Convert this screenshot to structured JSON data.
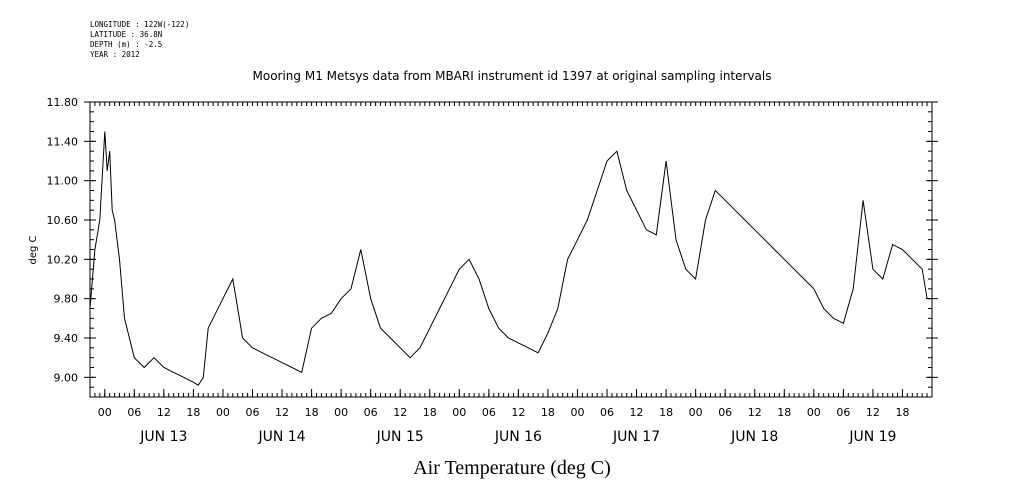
{
  "meta": {
    "longitude": "LONGITUDE : 122W(-122)",
    "latitude": "LATITUDE : 36.8N",
    "depth": "DEPTH (m) : -2.5",
    "year": "YEAR : 2012"
  },
  "chart_data": {
    "type": "line",
    "title": "Mooring M1 Metsys data from MBARI instrument id 1397 at original sampling intervals",
    "xlabel": "Air Temperature (deg C)",
    "ylabel": "deg C",
    "ylim": [
      8.8,
      11.8
    ],
    "yticks": [
      "9.00",
      "9.40",
      "9.80",
      "10.20",
      "10.60",
      "11.00",
      "11.40",
      "11.80"
    ],
    "x_start_hours_before_jun13_00": 3,
    "x_hour_tick_labels": [
      "00",
      "06",
      "12",
      "18",
      "00",
      "06",
      "12",
      "18",
      "00",
      "06",
      "12",
      "18",
      "00",
      "06",
      "12",
      "18",
      "00",
      "06",
      "12",
      "18",
      "00",
      "06",
      "12",
      "18",
      "00",
      "06",
      "12",
      "18"
    ],
    "day_labels": [
      "JUN 13",
      "JUN 14",
      "JUN 15",
      "JUN 16",
      "JUN 17",
      "JUN 18",
      "JUN 19"
    ],
    "series": [
      {
        "x_units": "hours since JUN 13 00:00",
        "x": [
          -3,
          -2,
          -1,
          0,
          0.5,
          1,
          1.5,
          2,
          3,
          4,
          5,
          6,
          8,
          10,
          12,
          14,
          16,
          18,
          19,
          20,
          21,
          22,
          24,
          26,
          28,
          30,
          32,
          34,
          36,
          38,
          40,
          42,
          44,
          46,
          48,
          50,
          52,
          54,
          56,
          58,
          60,
          62,
          64,
          66,
          68,
          70,
          72,
          74,
          76,
          78,
          80,
          82,
          84,
          86,
          88,
          90,
          92,
          94,
          96,
          98,
          100,
          102,
          104,
          106,
          108,
          110,
          112,
          114,
          116,
          118,
          120,
          122,
          124,
          126,
          128,
          130,
          132,
          134,
          136,
          138,
          140,
          142,
          144,
          146,
          148,
          150,
          152,
          154,
          156,
          158,
          160,
          162,
          164,
          166,
          167
        ],
        "values": [
          9.7,
          10.3,
          10.6,
          11.5,
          11.1,
          11.3,
          10.7,
          10.6,
          10.2,
          9.6,
          9.4,
          9.2,
          9.1,
          9.2,
          9.1,
          9.05,
          9.0,
          8.95,
          8.92,
          9.0,
          9.5,
          9.6,
          9.8,
          10.0,
          9.4,
          9.3,
          9.25,
          9.2,
          9.15,
          9.1,
          9.05,
          9.5,
          9.6,
          9.65,
          9.8,
          9.9,
          10.3,
          9.8,
          9.5,
          9.4,
          9.3,
          9.2,
          9.3,
          9.5,
          9.7,
          9.9,
          10.1,
          10.2,
          10.0,
          9.7,
          9.5,
          9.4,
          9.35,
          9.3,
          9.25,
          9.45,
          9.7,
          10.2,
          10.4,
          10.6,
          10.9,
          11.2,
          11.3,
          10.9,
          10.7,
          10.5,
          10.45,
          11.2,
          10.4,
          10.1,
          10.0,
          10.6,
          10.9,
          10.8,
          10.7,
          10.6,
          10.5,
          10.4,
          10.3,
          10.2,
          10.1,
          10.0,
          9.9,
          9.7,
          9.6,
          9.55,
          9.9,
          10.8,
          10.1,
          10.0,
          10.35,
          10.3,
          10.2,
          10.1,
          9.8
        ]
      }
    ],
    "grid": false
  }
}
